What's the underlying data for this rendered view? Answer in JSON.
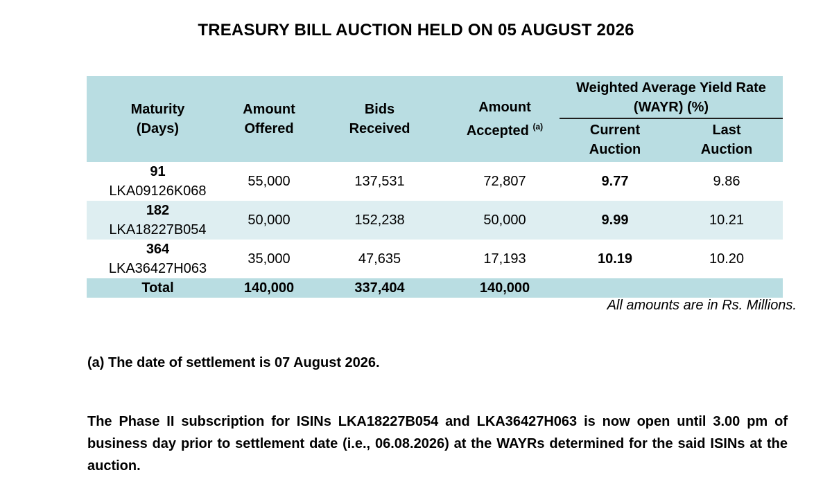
{
  "title": "TREASURY BILL AUCTION HELD ON 05 AUGUST 2026",
  "table": {
    "headers": {
      "maturity_line1": "Maturity",
      "maturity_line2": "(Days)",
      "offered_line1": "Amount",
      "offered_line2": "Offered",
      "bids_line1": "Bids",
      "bids_line2": "Received",
      "accepted_line1": "Amount",
      "accepted_line2": "Accepted",
      "accepted_sup": "(a)",
      "wayr_line1": "Weighted Average Yield Rate",
      "wayr_line2": "(WAYR) (%)",
      "current_line1": "Current",
      "current_line2": "Auction",
      "last_line1": "Last",
      "last_line2": "Auction"
    },
    "rows": [
      {
        "days": "91",
        "isin": "LKA09126K068",
        "offered": "55,000",
        "bids": "137,531",
        "accepted": "72,807",
        "current": "9.77",
        "last": "9.86"
      },
      {
        "days": "182",
        "isin": "LKA18227B054",
        "offered": "50,000",
        "bids": "152,238",
        "accepted": "50,000",
        "current": "9.99",
        "last": "10.21"
      },
      {
        "days": "364",
        "isin": "LKA36427H063",
        "offered": "35,000",
        "bids": "47,635",
        "accepted": "17,193",
        "current": "10.19",
        "last": "10.20"
      }
    ],
    "total": {
      "label": "Total",
      "offered": "140,000",
      "bids": "337,404",
      "accepted": "140,000"
    }
  },
  "amounts_note": "All amounts are in Rs. Millions.",
  "footnote": "(a) The date of settlement is 07 August 2026.",
  "paragraph": "The Phase II subscription for ISINs LKA18227B054 and LKA36427H063 is now open until 3.00 pm of business day prior to settlement date (i.e., 06.08.2026) at the WAYRs determined for the said ISINs at the auction."
}
